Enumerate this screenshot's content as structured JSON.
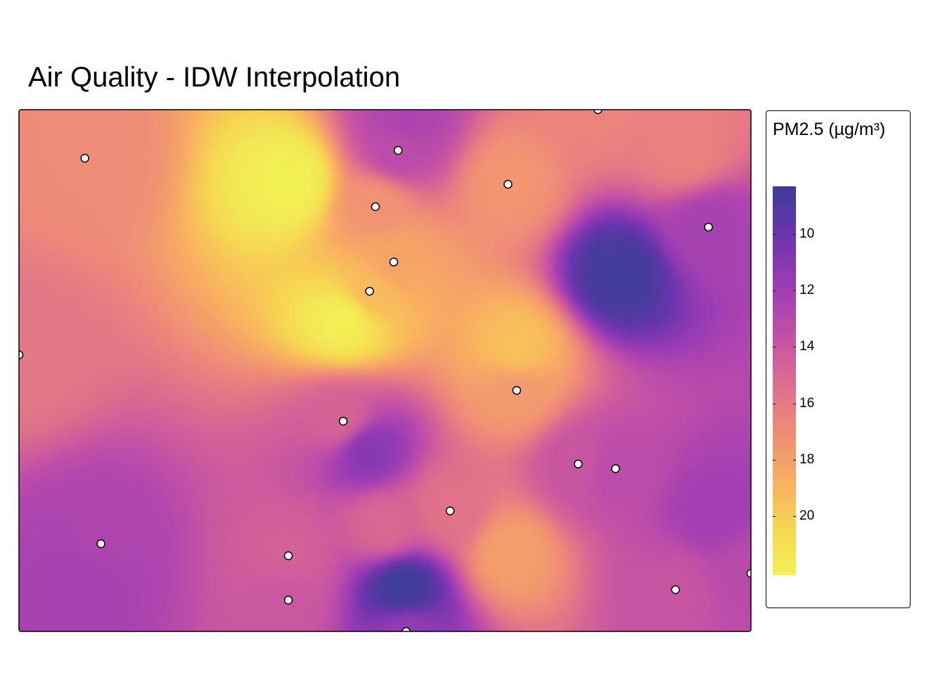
{
  "title": "Air Quality - IDW Interpolation",
  "legend": {
    "title": "PM2.5 (µg/m³)",
    "ticks": [
      {
        "value": 10,
        "label": "10"
      },
      {
        "value": 12,
        "label": "12"
      },
      {
        "value": 14,
        "label": "14"
      },
      {
        "value": 16,
        "label": "16"
      },
      {
        "value": 18,
        "label": "18"
      },
      {
        "value": 20,
        "label": "20"
      }
    ],
    "range": [
      8.3,
      22.1
    ],
    "palette": [
      "#3e3d99",
      "#6b35ad",
      "#9b3cb5",
      "#c14fa8",
      "#dc6b8f",
      "#ee8a79",
      "#f8ad62",
      "#f7d552",
      "#f1f254"
    ]
  },
  "chart_data": {
    "type": "heatmap",
    "title": "Air Quality - IDW Interpolation",
    "variable": "PM2.5 (µg/m³)",
    "value_range": [
      8.3,
      22.1
    ],
    "stations": [
      {
        "x": 0.09,
        "y": 0.093,
        "pm25": 17.0
      },
      {
        "x": 0.518,
        "y": 0.078,
        "pm25": 13.2
      },
      {
        "x": 0.791,
        "y": 0.0,
        "pm25": 16.6
      },
      {
        "x": 0.668,
        "y": 0.143,
        "pm25": 17.5
      },
      {
        "x": 0.487,
        "y": 0.186,
        "pm25": 17.4
      },
      {
        "x": 0.942,
        "y": 0.225,
        "pm25": 12.3
      },
      {
        "x": 0.512,
        "y": 0.292,
        "pm25": 18.2
      },
      {
        "x": 0.479,
        "y": 0.348,
        "pm25": 19.2
      },
      {
        "x": 0.0,
        "y": 0.47,
        "pm25": 15.9
      },
      {
        "x": 0.68,
        "y": 0.538,
        "pm25": 17.7
      },
      {
        "x": 0.443,
        "y": 0.597,
        "pm25": 14.8
      },
      {
        "x": 0.764,
        "y": 0.679,
        "pm25": 13.9
      },
      {
        "x": 0.815,
        "y": 0.688,
        "pm25": 13.2
      },
      {
        "x": 0.589,
        "y": 0.769,
        "pm25": 15.6
      },
      {
        "x": 0.112,
        "y": 0.832,
        "pm25": 12.6
      },
      {
        "x": 0.368,
        "y": 0.855,
        "pm25": 14.6
      },
      {
        "x": 0.368,
        "y": 0.94,
        "pm25": 14.0
      },
      {
        "x": 0.897,
        "y": 0.92,
        "pm25": 13.8
      },
      {
        "x": 1.0,
        "y": 0.889,
        "pm25": 13.1
      },
      {
        "x": 0.529,
        "y": 1.0,
        "pm25": 11.6
      }
    ],
    "hotspots": [
      {
        "x": 0.37,
        "y": 0.14,
        "pm25": 22.0
      },
      {
        "x": 0.445,
        "y": 0.4,
        "pm25": 22.0
      },
      {
        "x": 0.68,
        "y": 0.46,
        "pm25": 19.5
      },
      {
        "x": 0.67,
        "y": 0.85,
        "pm25": 18.0
      },
      {
        "x": 0.91,
        "y": 0.08,
        "pm25": 16.5
      },
      {
        "x": 0.82,
        "y": 0.315,
        "pm25": 8.5
      },
      {
        "x": 0.475,
        "y": 0.65,
        "pm25": 11.0
      },
      {
        "x": 0.525,
        "y": 0.92,
        "pm25": 8.3
      },
      {
        "x": 0.95,
        "y": 0.77,
        "pm25": 12.0
      },
      {
        "x": 0.09,
        "y": 0.9,
        "pm25": 12.2
      },
      {
        "x": 0.53,
        "y": 0.02,
        "pm25": 12.5
      },
      {
        "x": 0.5,
        "y": 0.8,
        "pm25": 15.0
      }
    ]
  }
}
